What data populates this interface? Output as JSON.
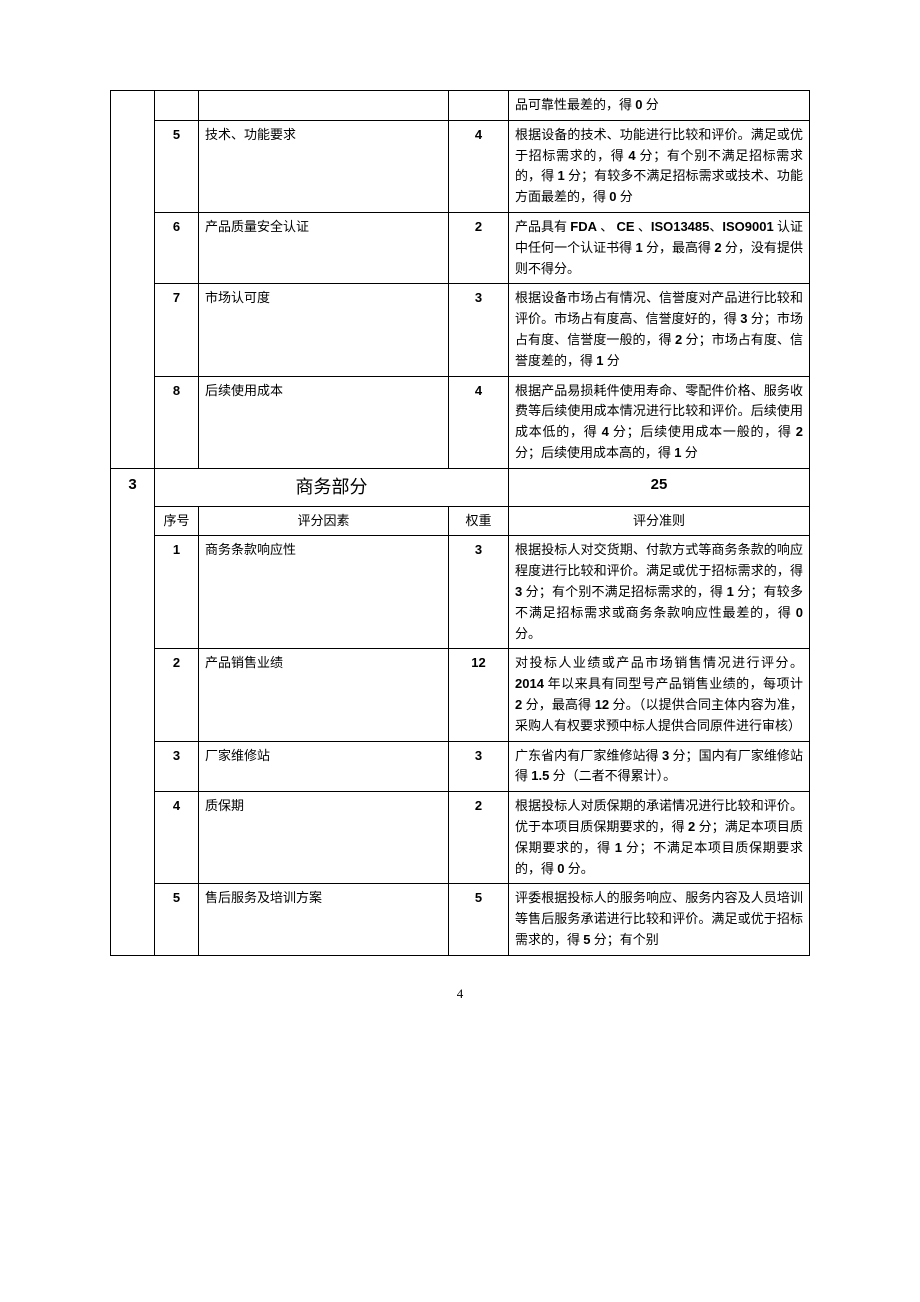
{
  "page_number": "4",
  "section2": {
    "rows": [
      {
        "seq": "",
        "factor": "",
        "weight": "",
        "rule_prefix": "品可靠性最差的，得 ",
        "rule_bold": "0",
        "rule_suffix": " 分"
      },
      {
        "seq": "5",
        "factor": "技术、功能要求",
        "weight": "4",
        "rule_parts": [
          {
            "t": "根据设备的技术、功能进行比较和评价。满足或优于招标需求的，得 "
          },
          {
            "b": "4"
          },
          {
            "t": " 分；有个别不满足招标需求的，得 "
          },
          {
            "b": "1"
          },
          {
            "t": " 分；有较多不满足招标需求或技术、功能方面最差的，得 "
          },
          {
            "b": "0"
          },
          {
            "t": " 分"
          }
        ]
      },
      {
        "seq": "6",
        "factor": "产品质量安全认证",
        "weight": "2",
        "rule_parts": [
          {
            "t": "产品具有 "
          },
          {
            "b": "FDA"
          },
          {
            "t": " 、 "
          },
          {
            "b": "CE"
          },
          {
            "t": " 、"
          },
          {
            "b": "ISO13485"
          },
          {
            "t": "、"
          },
          {
            "b": "ISO9001"
          },
          {
            "t": " 认证中任何一个认证书得 "
          },
          {
            "b": "1"
          },
          {
            "t": " 分，最高得 "
          },
          {
            "b": "2"
          },
          {
            "t": " 分，没有提供则不得分。"
          }
        ]
      },
      {
        "seq": "7",
        "factor": "市场认可度",
        "weight": "3",
        "rule_parts": [
          {
            "t": "根据设备市场占有情况、信誉度对产品进行比较和评价。市场占有度高、信誉度好的，得 "
          },
          {
            "b": "3"
          },
          {
            "t": " 分；市场占有度、信誉度一般的，得 "
          },
          {
            "b": "2"
          },
          {
            "t": " 分；市场占有度、信誉度差的，得 "
          },
          {
            "b": "1"
          },
          {
            "t": " 分"
          }
        ]
      },
      {
        "seq": "8",
        "factor": "后续使用成本",
        "weight": "4",
        "rule_parts": [
          {
            "t": "根据产品易损耗件使用寿命、零配件价格、服务收费等后续使用成本情况进行比较和评价。后续使用成本低的，得 "
          },
          {
            "b": "4"
          },
          {
            "t": " 分；后续使用成本一般的，得 "
          },
          {
            "b": "2"
          },
          {
            "t": " 分；后续使用成本高的，得 "
          },
          {
            "b": "1"
          },
          {
            "t": " 分"
          }
        ]
      }
    ]
  },
  "section3": {
    "num": "3",
    "title": "商务部分",
    "total": "25",
    "headers": {
      "seq": "序号",
      "factor": "评分因素",
      "weight": "权重",
      "rule": "评分准则"
    },
    "rows": [
      {
        "seq": "1",
        "factor": "商务条款响应性",
        "weight": "3",
        "rule_parts": [
          {
            "t": "根据投标人对交货期、付款方式等商务条款的响应程度进行比较和评价。满足或优于招标需求的，得 "
          },
          {
            "b": "3"
          },
          {
            "t": " 分；有个别不满足招标需求的，得 "
          },
          {
            "b": "1"
          },
          {
            "t": " 分；有较多不满足招标需求或商务条款响应性最差的，得 "
          },
          {
            "b": "0"
          },
          {
            "t": " 分。"
          }
        ]
      },
      {
        "seq": "2",
        "factor": "产品销售业绩",
        "weight": "12",
        "rule_parts": [
          {
            "t": "对投标人业绩或产品市场销售情况进行评分。"
          },
          {
            "b": "2014"
          },
          {
            "t": " 年以来具有同型号产品销售业绩的，每项计 "
          },
          {
            "b": "2"
          },
          {
            "t": " 分，最高得 "
          },
          {
            "b": "12"
          },
          {
            "t": " 分。（以提供合同主体内容为准，采购人有权要求预中标人提供合同原件进行审核）"
          }
        ]
      },
      {
        "seq": "3",
        "factor": "厂家维修站",
        "weight": "3",
        "rule_parts": [
          {
            "t": "广东省内有厂家维修站得 "
          },
          {
            "b": "3"
          },
          {
            "t": " 分；国内有厂家维修站得 "
          },
          {
            "b": "1.5"
          },
          {
            "t": " 分（二者不得累计）。"
          }
        ]
      },
      {
        "seq": "4",
        "factor": "质保期",
        "weight": "2",
        "rule_parts": [
          {
            "t": "根据投标人对质保期的承诺情况进行比较和评价。优于本项目质保期要求的，得 "
          },
          {
            "b": "2"
          },
          {
            "t": " 分；满足本项目质保期要求的，得 "
          },
          {
            "b": "1"
          },
          {
            "t": " 分；不满足本项目质保期要求的，得 "
          },
          {
            "b": "0"
          },
          {
            "t": " 分。"
          }
        ]
      },
      {
        "seq": "5",
        "factor": "售后服务及培训方案",
        "weight": "5",
        "rule_parts": [
          {
            "t": "评委根据投标人的服务响应、服务内容及人员培训等售后服务承诺进行比较和评价。满足或优于招标需求的，得 "
          },
          {
            "b": "5"
          },
          {
            "t": " 分；有个别"
          }
        ]
      }
    ]
  }
}
